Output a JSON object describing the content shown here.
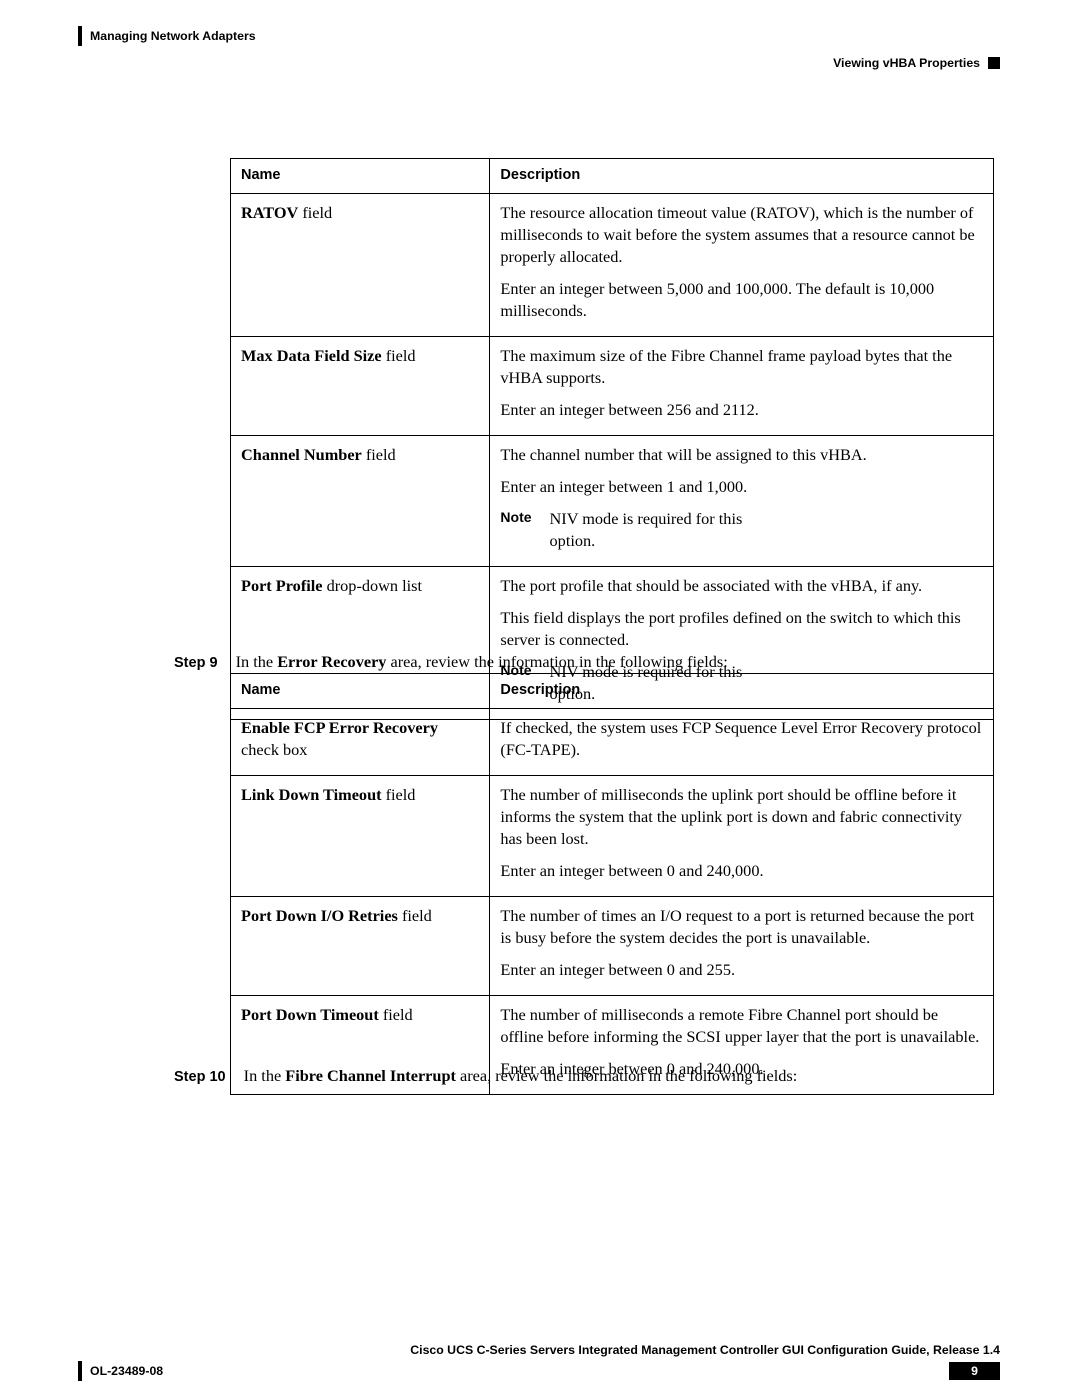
{
  "header": {
    "chapter": "Managing Network Adapters",
    "section": "Viewing vHBA Properties"
  },
  "table1": {
    "head_name": "Name",
    "head_desc": "Description",
    "rows": [
      {
        "name_b": "RATOV",
        "name_r": " field",
        "p1": "The resource allocation timeout value (RATOV), which is the number of milliseconds to wait before the system assumes that a resource cannot be properly allocated.",
        "p2": "Enter an integer between 5,000 and 100,000. The default is 10,000 milliseconds."
      },
      {
        "name_b": "Max Data Field Size",
        "name_r": " field",
        "p1": "The maximum size of the Fibre Channel frame payload bytes that the vHBA supports.",
        "p2": "Enter an integer between 256 and 2112."
      },
      {
        "name_b": "Channel Number",
        "name_r": " field",
        "p1": "The channel number that will be assigned to this vHBA.",
        "p2": "Enter an integer between 1 and 1,000.",
        "note_lbl": "Note",
        "note": "NIV mode is required for this option."
      },
      {
        "name_b": "Port Profile",
        "name_r": " drop-down list",
        "p1": "The port profile that should be associated with the vHBA, if any.",
        "p2": "This field displays the port profiles defined on the switch to which this server is connected.",
        "note_lbl": "Note",
        "note": "NIV mode is required for this option."
      }
    ]
  },
  "step9": {
    "label": "Step 9",
    "pre": "In the ",
    "bold": "Error Recovery",
    "post": " area, review the information in the following fields:"
  },
  "table2": {
    "head_name": "Name",
    "head_desc": "Description",
    "rows": [
      {
        "name_b": "Enable FCP Error Recovery",
        "name_r": " check box",
        "p1": "If checked, the system uses FCP Sequence Level Error Recovery protocol (FC-TAPE)."
      },
      {
        "name_b": "Link Down Timeout",
        "name_r": " field",
        "p1": "The number of milliseconds the uplink port should be offline before it informs the system that the uplink port is down and fabric connectivity has been lost.",
        "p2": "Enter an integer between 0 and 240,000."
      },
      {
        "name_b": "Port Down I/O Retries",
        "name_r": " field",
        "p1": "The number of times an I/O request to a port is returned because the port is busy before the system decides the port is unavailable.",
        "p2": "Enter an integer between 0 and 255."
      },
      {
        "name_b": "Port Down Timeout",
        "name_r": " field",
        "p1": "The number of milliseconds a remote Fibre Channel port should be offline before informing the SCSI upper layer that the port is unavailable.",
        "p2": "Enter an integer between 0 and 240,000."
      }
    ]
  },
  "step10": {
    "label": "Step 10",
    "pre": "In the ",
    "bold": "Fibre Channel Interrupt",
    "post": " area, review the information in the following fields:"
  },
  "footer": {
    "title": "Cisco UCS C-Series Servers Integrated Management Controller GUI Configuration Guide, Release 1.4",
    "doc_id": "OL-23489-08",
    "page": "9"
  }
}
